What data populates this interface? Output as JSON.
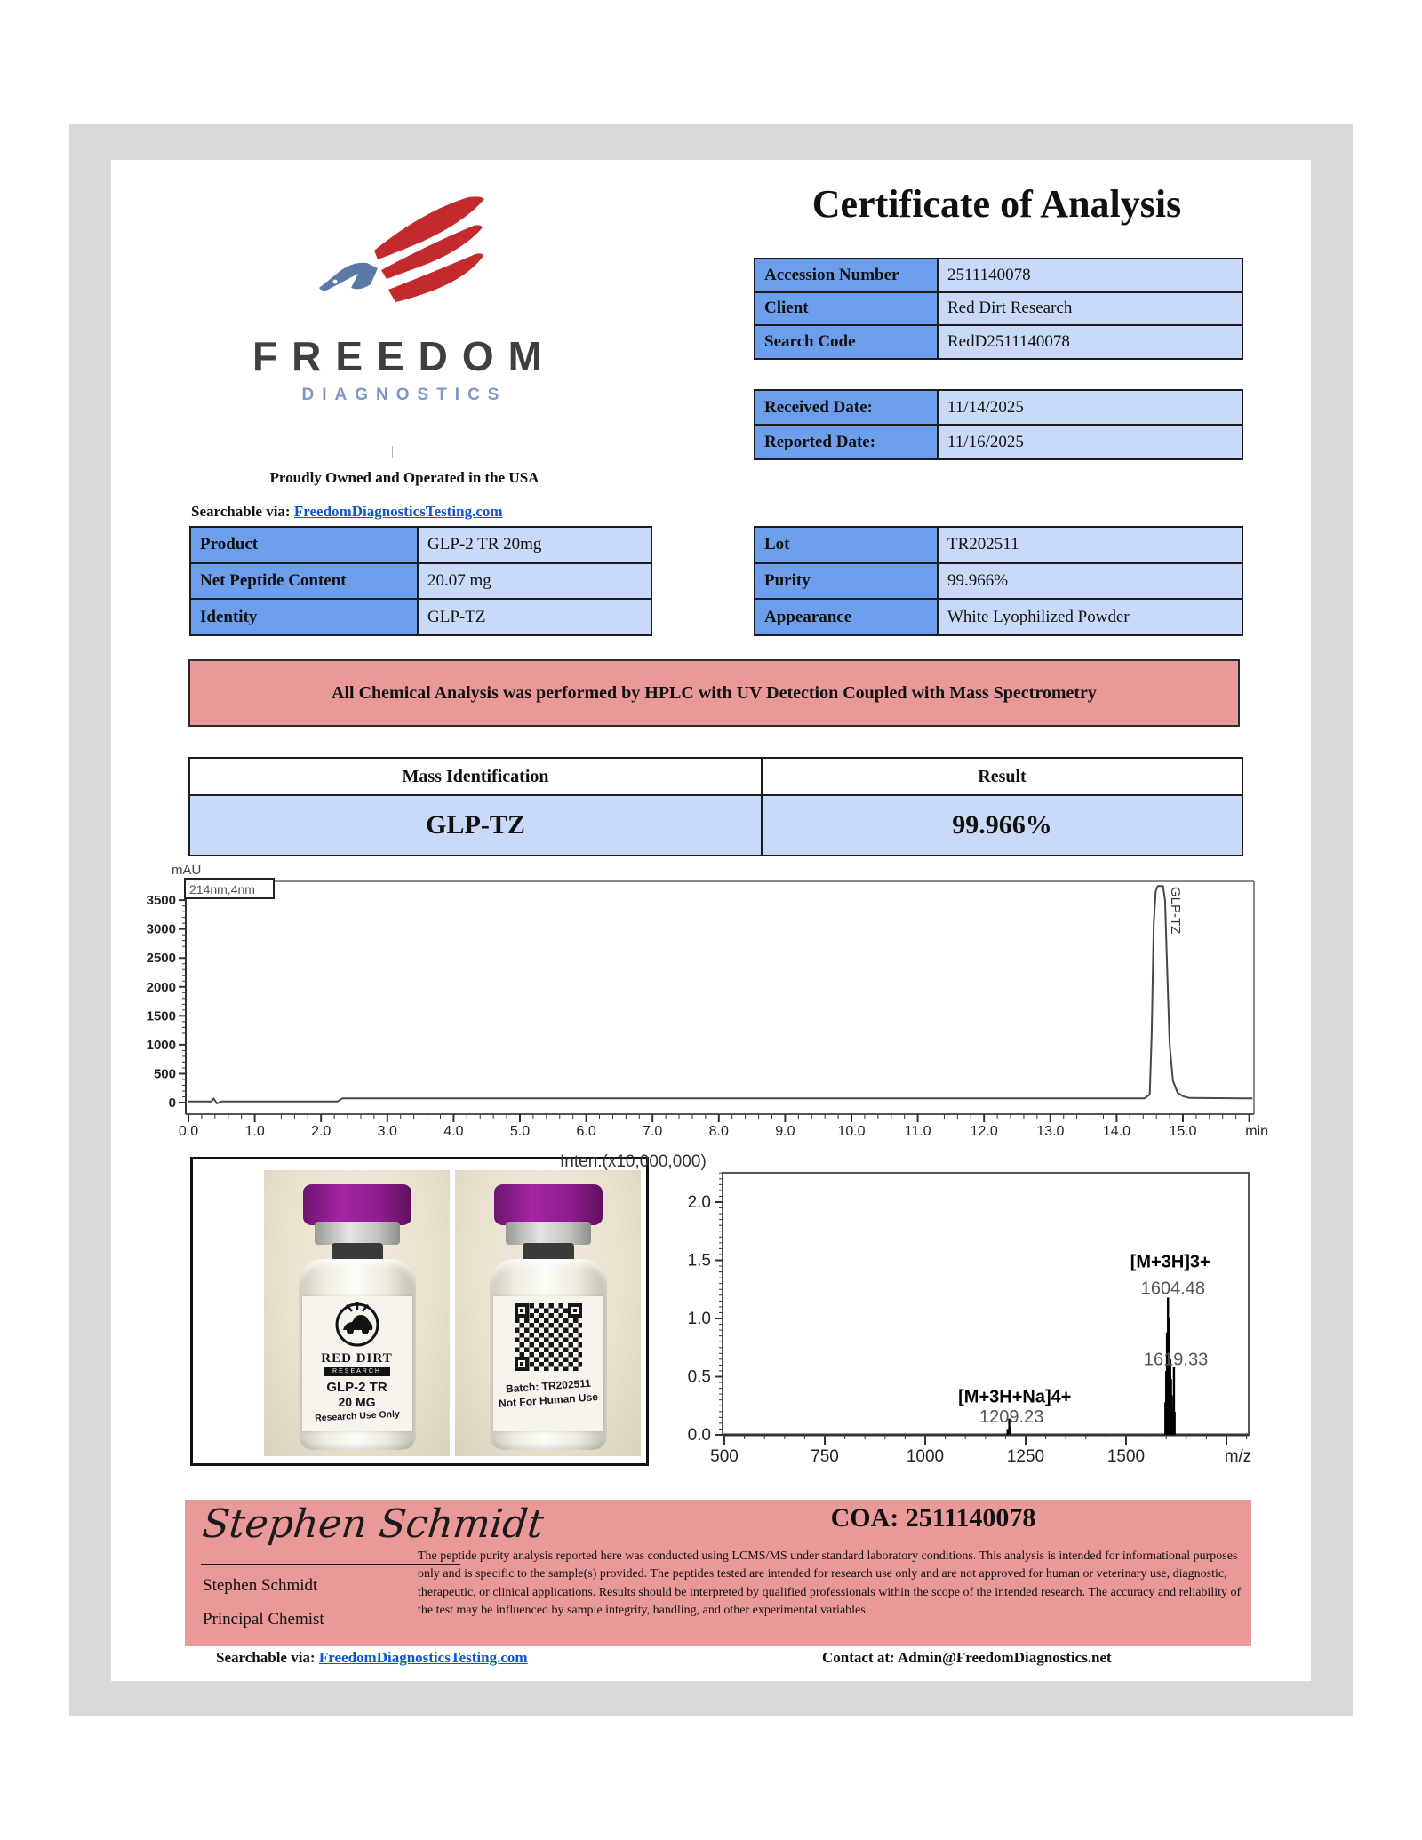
{
  "colors": {
    "accent_blue": "#6d9eeb",
    "light_blue": "#c9daf8",
    "pink": "#ea9999",
    "frame_gray": "#d9d9d9",
    "link_blue": "#1155cc",
    "logo_gray": "#3f3f3f",
    "logo_blue": "#7e97c6",
    "eagle_red": "#c22a2e",
    "eagle_blue": "#5b79a6",
    "cap_purple": "#8e1d8e"
  },
  "logo": {
    "brand": "FREEDOM",
    "sub": "DIAGNOSTICS",
    "tagline": "Proudly Owned and Operated in the USA",
    "searchable_label": "Searchable via:",
    "searchable_link": "FreedomDiagnosticsTesting.com"
  },
  "title": "Certificate of Analysis",
  "info_table": {
    "rows": [
      [
        "Accession Number",
        "2511140078"
      ],
      [
        "Client",
        "Red Dirt Research"
      ],
      [
        "Search Code",
        "RedD2511140078"
      ]
    ]
  },
  "dates_table": {
    "rows": [
      [
        "Received Date:",
        "11/14/2025"
      ],
      [
        "Reported Date:",
        "11/16/2025"
      ]
    ]
  },
  "product_table": {
    "rows": [
      [
        "Product",
        "GLP-2 TR 20mg"
      ],
      [
        "Net Peptide Content",
        "20.07 mg"
      ],
      [
        "Identity",
        "GLP-TZ"
      ]
    ]
  },
  "lot_table": {
    "rows": [
      [
        "Lot",
        "TR202511"
      ],
      [
        "Purity",
        "99.966%"
      ],
      [
        "Appearance",
        "White Lyophilized Powder"
      ]
    ]
  },
  "banner": "All Chemical Analysis was performed by HPLC with UV Detection Coupled with Mass Spectrometry",
  "result_table": {
    "headers": [
      "Mass Identification",
      "Result"
    ],
    "row": [
      "GLP-TZ",
      "99.966%"
    ]
  },
  "chart_data": [
    {
      "type": "line",
      "name": "HPLC chromatogram",
      "ylabel": "mAU",
      "legend": "214nm,4nm",
      "x_unit": "min",
      "xlim": [
        0,
        16.1
      ],
      "ylim": [
        -200,
        3830
      ],
      "x_ticks": [
        "0.0",
        "1.0",
        "2.0",
        "3.0",
        "4.0",
        "5.0",
        "6.0",
        "7.0",
        "8.0",
        "9.0",
        "10.0",
        "11.0",
        "12.0",
        "13.0",
        "14.0",
        "15.0"
      ],
      "y_ticks": [
        0,
        500,
        1000,
        1500,
        2000,
        2500,
        3000,
        3500
      ],
      "peak_label": "GLP-TZ",
      "series": [
        {
          "name": "GLP-TZ",
          "points": [
            [
              0,
              20
            ],
            [
              0.35,
              20
            ],
            [
              0.38,
              70
            ],
            [
              0.43,
              -15
            ],
            [
              0.5,
              20
            ],
            [
              2.25,
              20
            ],
            [
              2.32,
              72
            ],
            [
              14.42,
              72
            ],
            [
              14.5,
              140
            ],
            [
              14.53,
              1200
            ],
            [
              14.56,
              3100
            ],
            [
              14.59,
              3650
            ],
            [
              14.62,
              3745
            ],
            [
              14.7,
              3745
            ],
            [
              14.73,
              3500
            ],
            [
              14.76,
              2400
            ],
            [
              14.8,
              1000
            ],
            [
              14.85,
              380
            ],
            [
              14.92,
              170
            ],
            [
              15.0,
              110
            ],
            [
              15.1,
              80
            ],
            [
              16.05,
              72
            ]
          ]
        }
      ]
    },
    {
      "type": "stick",
      "name": "mass spectrum",
      "title": "Inten.(x10,000,000)",
      "xlabel": "m/z",
      "xlim": [
        500,
        1805
      ],
      "ylim": [
        0,
        2.25
      ],
      "x_ticks": [
        "500",
        "750",
        "1000",
        "1250",
        "1500"
      ],
      "y_ticks": [
        "0.0",
        "0.5",
        "1.0",
        "1.5",
        "2.0"
      ],
      "peaks": [
        [
          1205,
          0.05
        ],
        [
          1209.23,
          0.14
        ],
        [
          1212,
          0.07
        ],
        [
          1598,
          0.28
        ],
        [
          1600,
          0.55
        ],
        [
          1602,
          0.88
        ],
        [
          1604.48,
          1.18
        ],
        [
          1606,
          1.0
        ],
        [
          1608,
          0.85
        ],
        [
          1610,
          0.65
        ],
        [
          1612,
          0.48
        ],
        [
          1614,
          0.34
        ],
        [
          1616,
          0.24
        ],
        [
          1619.33,
          0.58
        ],
        [
          1621,
          0.2
        ]
      ],
      "annotations": [
        {
          "text": "[M+3H]3+",
          "x": 1610,
          "y": 1.44,
          "bold": true
        },
        {
          "text": "1604.48",
          "x": 1617,
          "y": 1.21,
          "muted": true
        },
        {
          "text": "1619.33",
          "x": 1624,
          "y": 0.6,
          "muted": true
        },
        {
          "text": "[M+3H+Na]4+",
          "x": 1223,
          "y": 0.28,
          "bold": true
        },
        {
          "text": "1209.23",
          "x": 1215,
          "y": 0.107,
          "muted": true
        }
      ]
    }
  ],
  "vials": {
    "left": {
      "brand_top": "RED DIRT",
      "brand_sub": "RESEARCH",
      "line1": "GLP-2 TR",
      "line2": "20 MG",
      "line3": "Research Use Only"
    },
    "right": {
      "batch": "Batch: TR202511",
      "warning": "Not For Human Use"
    }
  },
  "signature": {
    "script": "Stephen Schmidt",
    "name": "Stephen Schmidt",
    "role": "Principal Chemist",
    "coa": "COA: 2511140078",
    "disclaimer": "The peptide purity analysis reported here was conducted using LCMS/MS under standard laboratory conditions. This analysis is intended for informational purposes only and is specific to the sample(s) provided. The peptides tested are intended for research use only and are not approved for human or veterinary use, diagnostic, therapeutic, or clinical applications. Results should be interpreted by qualified professionals within the scope of the intended research. The accuracy and reliability of the test may be influenced by sample integrity, handling, and other experimental variables."
  },
  "footer": {
    "searchable_label": "Searchable via:",
    "searchable_link": "FreedomDiagnosticsTesting.com",
    "contact": "Contact at: Admin@FreedomDiagnostics.net"
  }
}
